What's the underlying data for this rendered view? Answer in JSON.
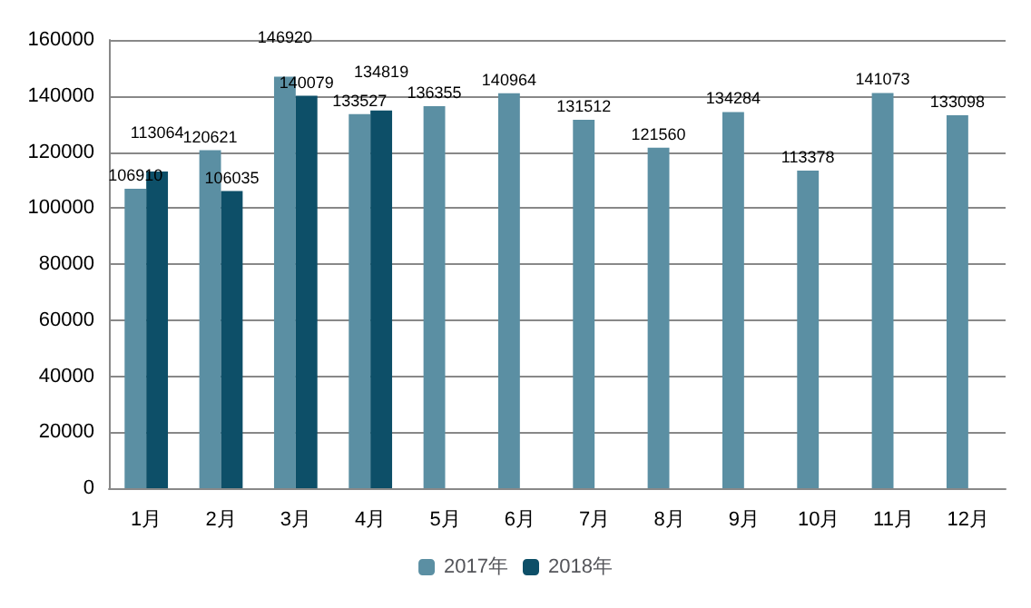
{
  "chart_data": {
    "type": "bar",
    "categories": [
      "1月",
      "2月",
      "3月",
      "4月",
      "5月",
      "6月",
      "7月",
      "8月",
      "9月",
      "10月",
      "11月",
      "12月"
    ],
    "series": [
      {
        "name": "2017年",
        "color": "#5b8fa3",
        "values": [
          106910,
          120621,
          146920,
          133527,
          136355,
          140964,
          131512,
          121560,
          134284,
          113378,
          141073,
          133098
        ]
      },
      {
        "name": "2018年",
        "color": "#0d4f68",
        "values": [
          113064,
          106035,
          140079,
          134819,
          null,
          null,
          null,
          null,
          null,
          null,
          null,
          null
        ]
      }
    ],
    "ylim": [
      0,
      160000
    ],
    "yticks": [
      0,
      20000,
      40000,
      60000,
      80000,
      100000,
      120000,
      140000,
      160000
    ],
    "grid": "y",
    "legend": "bottom",
    "data_labels": true
  }
}
